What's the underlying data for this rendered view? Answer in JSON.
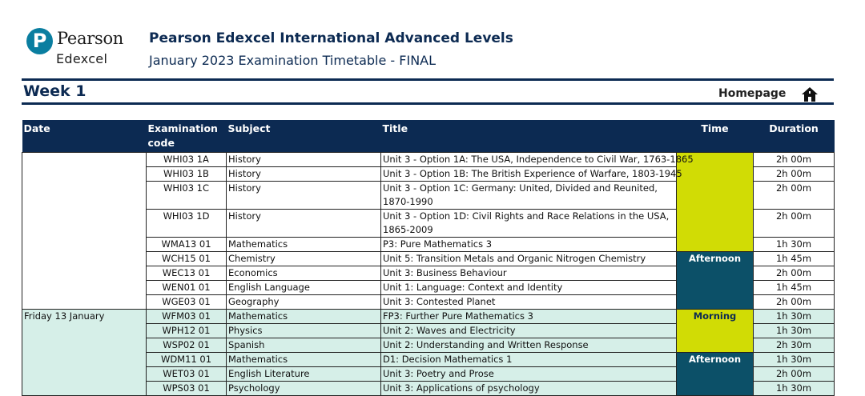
{
  "header": {
    "logo_word1": "Pearson",
    "logo_word2": "Edexcel",
    "logo_glyph": "P",
    "title": "Pearson Edexcel International Advanced Levels",
    "subtitle": "January 2023 Examination Timetable - FINAL"
  },
  "nav": {
    "week": "Week 1",
    "homepage": "Homepage",
    "home_icon": "home-icon"
  },
  "table": {
    "headers": [
      "Date",
      "Examination code",
      "Subject",
      "Title",
      "Time",
      "Duration"
    ],
    "rows": [
      {
        "code": "WHI03 1A",
        "subject": "History",
        "title": "Unit 3 - Option 1A: The USA, Independence to Civil War, 1763-1865",
        "duration": "2h 00m"
      },
      {
        "code": "WHI03 1B",
        "subject": "History",
        "title": "Unit 3 - Option 1B: The British Experience of Warfare, 1803-1945",
        "duration": "2h 00m"
      },
      {
        "code": "WHI03 1C",
        "subject": "History",
        "title": "Unit 3 - Option 1C: Germany: United, Divided and Reunited, 1870-1990",
        "duration": "2h 00m"
      },
      {
        "code": "WHI03 1D",
        "subject": "History",
        "title": "Unit 3 - Option 1D: Civil Rights and Race Relations in the USA, 1865-2009",
        "duration": "2h 00m"
      },
      {
        "code": "WMA13 01",
        "subject": "Mathematics",
        "title": "P3: Pure Mathematics 3",
        "duration": "1h 30m"
      },
      {
        "code": "WCH15 01",
        "subject": "Chemistry",
        "title": "Unit 5: Transition Metals and Organic Nitrogen Chemistry",
        "time": "Afternoon",
        "duration": "1h 45m"
      },
      {
        "code": "WEC13 01",
        "subject": "Economics",
        "title": "Unit 3: Business Behaviour",
        "duration": "2h 00m"
      },
      {
        "code": "WEN01 01",
        "subject": "English Language",
        "title": "Unit 1: Language: Context and Identity",
        "duration": "1h 45m"
      },
      {
        "code": "WGE03 01",
        "subject": "Geography",
        "title": "Unit 3: Contested Planet",
        "duration": "2h 00m"
      },
      {
        "date": "Friday 13 January",
        "code": "WFM03 01",
        "subject": "Mathematics",
        "title": "FP3: Further Pure Mathematics 3",
        "time": "Morning",
        "duration": "1h 30m"
      },
      {
        "code": "WPH12 01",
        "subject": "Physics",
        "title": "Unit 2: Waves and Electricity",
        "duration": "1h 30m"
      },
      {
        "code": "WSP02 01",
        "subject": "Spanish",
        "title": "Unit 2: Understanding and Written Response",
        "duration": "2h 30m"
      },
      {
        "code": "WDM11 01",
        "subject": "Mathematics",
        "title": "D1: Decision Mathematics 1",
        "time": "Afternoon",
        "duration": "1h 30m"
      },
      {
        "code": "WET03 01",
        "subject": "English Literature",
        "title": "Unit 3: Poetry and Prose",
        "duration": "2h 00m"
      },
      {
        "code": "WPS03 01",
        "subject": "Psychology",
        "title": "Unit 3: Applications of psychology",
        "duration": "1h 30m"
      }
    ]
  },
  "colors": {
    "navy": "#0c2a52",
    "teal": "#0c5068",
    "yellow": "#d1dc05",
    "mint": "#d6efe8"
  }
}
